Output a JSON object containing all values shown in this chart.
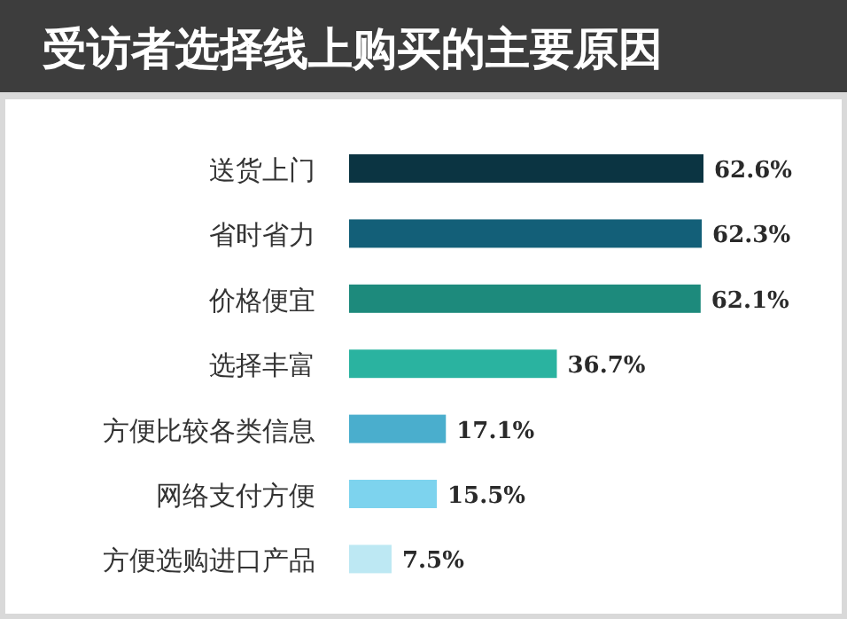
{
  "chart_data": {
    "type": "bar",
    "orientation": "horizontal",
    "title": "受访者选择线上购买的主要原因",
    "categories": [
      "送货上门",
      "省时省力",
      "价格便宜",
      "选择丰富",
      "方便比较各类信息",
      "网络支付方便",
      "方便选购进口产品"
    ],
    "values": [
      62.6,
      62.3,
      62.1,
      36.7,
      17.1,
      15.5,
      7.5
    ],
    "colors": [
      "#0b3442",
      "#135f78",
      "#1d8a7c",
      "#2ab3a0",
      "#4aaecd",
      "#7dd3ee",
      "#bde8f3"
    ],
    "value_labels": [
      "62.6%",
      "62.3%",
      "62.1%",
      "36.7%",
      "17.1%",
      "15.5%",
      "7.5%"
    ]
  }
}
